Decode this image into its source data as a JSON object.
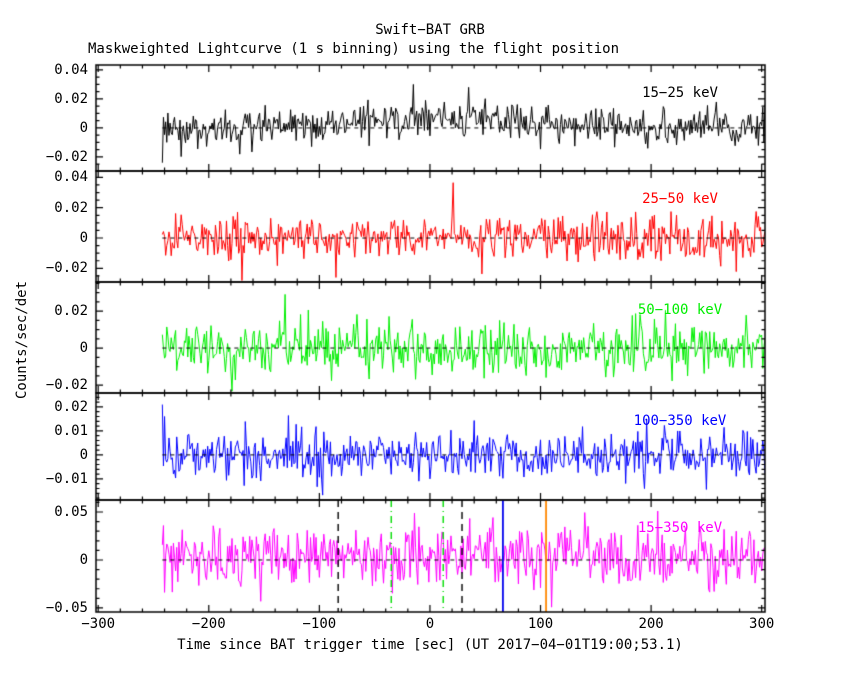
{
  "title": "Swift−BAT GRB",
  "subtitle": "Maskweighted Lightcurve (1 s binning) using the flight position",
  "chart_data": {
    "type": "line",
    "title": "Swift−BAT GRB",
    "subtitle": "Maskweighted Lightcurve (1 s binning) using the flight position",
    "xlabel": "Time since BAT trigger time [sec] (UT 2017−04−01T19:00;53.1)",
    "ylabel": "Counts/sec/det",
    "xlim": [
      -302,
      303
    ],
    "xticks": [
      -300,
      -200,
      -100,
      0,
      100,
      200,
      300
    ],
    "xtick_labels": [
      "−300",
      "−200",
      "−100",
      "0",
      "100",
      "200",
      "300"
    ],
    "x_minor_step": 20,
    "grid": false,
    "legend_position": "inside-top-right-per-panel",
    "zero_line": {
      "color": "#000000",
      "style": "dashed",
      "value": 0
    },
    "panels": [
      {
        "label": "15−25 keV",
        "color": "#000000",
        "ylim": [
          -0.0297,
          0.0434
        ],
        "yticks": [
          0.04,
          0.02,
          0,
          -0.02
        ],
        "ytick_labels": [
          "0.04",
          "0.02",
          "0",
          "−0.02"
        ],
        "y_minor_step": 0.005,
        "noise": {
          "description": "mask-weighted count rate, gaussian noise about zero with weak broad hump near trigger",
          "t_start": -242,
          "t_end": 303,
          "bin_sec": 1,
          "baseline": 0,
          "sigma": 0.0065,
          "bump": {
            "amp": 0.0065,
            "center": 5,
            "sigma": 85
          },
          "spikes": [
            {
              "t": -242,
              "v": -0.024
            },
            {
              "t": -15,
              "v": 0.03
            },
            {
              "t": 35,
              "v": 0.028
            }
          ],
          "seed": 3
        }
      },
      {
        "label": "25−50 keV",
        "color": "#ff0000",
        "ylim": [
          -0.029,
          0.0442
        ],
        "yticks": [
          0.04,
          0.02,
          0,
          -0.02
        ],
        "ytick_labels": [
          "0.04",
          "0.02",
          "0",
          "−0.02"
        ],
        "y_minor_step": 0.005,
        "noise": {
          "description": "flat gaussian noise about zero",
          "t_start": -242,
          "t_end": 303,
          "bin_sec": 1,
          "baseline": 0,
          "sigma": 0.0075,
          "bump": {
            "amp": 0.0,
            "center": 0,
            "sigma": 80
          },
          "spikes": [
            {
              "t": -170,
              "v": -0.028
            },
            {
              "t": 21,
              "v": 0.0365
            },
            {
              "t": -85,
              "v": -0.026
            }
          ],
          "seed": 17
        }
      },
      {
        "label": "50−100 keV",
        "color": "#00ee00",
        "ylim": [
          -0.0243,
          0.0357
        ],
        "yticks": [
          0.02,
          0,
          -0.02
        ],
        "ytick_labels": [
          "0.02",
          "0",
          "−0.02"
        ],
        "y_minor_step": 0.005,
        "noise": {
          "description": "flat gaussian noise about zero",
          "t_start": -242,
          "t_end": 303,
          "bin_sec": 1,
          "baseline": 0,
          "sigma": 0.007,
          "bump": {
            "amp": 0.0,
            "center": 0,
            "sigma": 80
          },
          "spikes": [
            {
              "t": -131,
              "v": 0.029
            }
          ],
          "seed": 29
        }
      },
      {
        "label": "100−350 keV",
        "color": "#0000ff",
        "ylim": [
          -0.0188,
          0.0258
        ],
        "yticks": [
          0.02,
          0.01,
          0,
          -0.01
        ],
        "ytick_labels": [
          "0.02",
          "0.01",
          "0",
          "−0.01"
        ],
        "y_minor_step": 0.002,
        "noise": {
          "description": "flat gaussian noise about zero",
          "t_start": -242,
          "t_end": 303,
          "bin_sec": 1,
          "baseline": 0,
          "sigma": 0.005,
          "bump": {
            "amp": 0.0,
            "center": 0,
            "sigma": 80
          },
          "spikes": [
            {
              "t": -242,
              "v": 0.021
            },
            {
              "t": -240,
              "v": 0.016
            }
          ],
          "seed": 41
        }
      },
      {
        "label": "15−350 keV",
        "color": "#ff00ff",
        "ylim": [
          -0.0542,
          0.0625
        ],
        "yticks": [
          0.05,
          0,
          -0.05
        ],
        "ytick_labels": [
          "0.05",
          "0",
          "−0.05"
        ],
        "y_minor_step": 0.01,
        "noise": {
          "description": "total-band gaussian noise with weak broad hump near trigger",
          "t_start": -242,
          "t_end": 303,
          "bin_sec": 1,
          "baseline": 0,
          "sigma": 0.0155,
          "bump": {
            "amp": 0.008,
            "center": 5,
            "sigma": 85
          },
          "spikes": [],
          "seed": 53
        }
      }
    ],
    "markers": [
      {
        "t": -83,
        "color": "#000000",
        "style": "dashed"
      },
      {
        "t": -35,
        "color": "#00dd00",
        "style": "dashdot"
      },
      {
        "t": 12,
        "color": "#00dd00",
        "style": "dashdot"
      },
      {
        "t": 29,
        "color": "#000000",
        "style": "dashed"
      },
      {
        "t": 66,
        "color": "#0000ee",
        "style": "solid"
      },
      {
        "t": 105,
        "color": "#ff8800",
        "style": "solid"
      }
    ]
  }
}
